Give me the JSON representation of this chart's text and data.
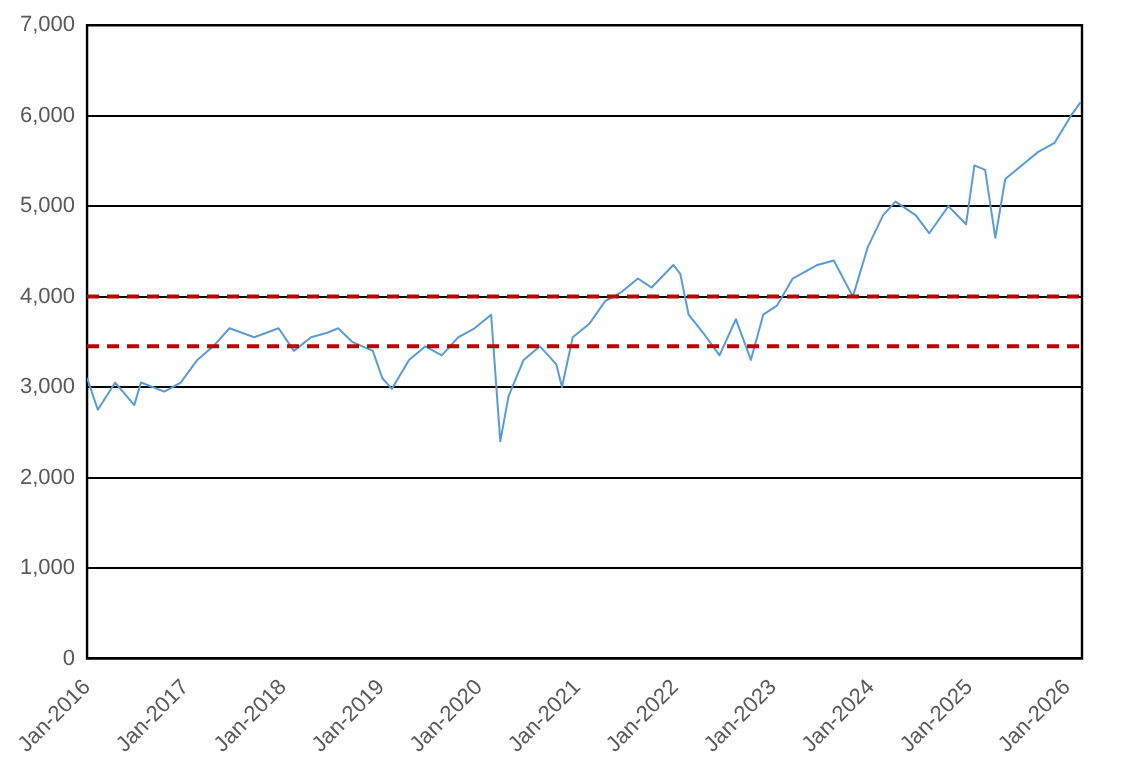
{
  "chart_data": {
    "type": "line",
    "x": [
      "2016-01-01",
      "2016-02-10",
      "2016-04-15",
      "2016-06-25",
      "2016-07-20",
      "2016-10-15",
      "2016-12-15",
      "2017-02-15",
      "2017-04-15",
      "2017-06-15",
      "2017-09-15",
      "2017-12-15",
      "2018-02-10",
      "2018-04-15",
      "2018-06-15",
      "2018-07-25",
      "2018-09-15",
      "2018-12-01",
      "2019-01-05",
      "2019-02-10",
      "2019-04-15",
      "2019-06-15",
      "2019-08-15",
      "2019-10-15",
      "2019-12-15",
      "2020-02-15",
      "2020-03-20",
      "2020-04-20",
      "2020-06-15",
      "2020-08-15",
      "2020-10-15",
      "2020-11-05",
      "2020-12-15",
      "2021-02-15",
      "2021-04-15",
      "2021-06-15",
      "2021-08-15",
      "2021-10-05",
      "2021-12-25",
      "2022-01-20",
      "2022-02-20",
      "2022-04-15",
      "2022-06-15",
      "2022-08-15",
      "2022-10-10",
      "2022-11-25",
      "2023-01-15",
      "2023-03-15",
      "2023-06-15",
      "2023-08-15",
      "2023-10-25",
      "2023-12-20",
      "2024-02-15",
      "2024-04-01",
      "2024-06-15",
      "2024-08-05",
      "2024-10-15",
      "2024-12-20",
      "2025-01-20",
      "2025-03-01",
      "2025-04-08",
      "2025-05-15",
      "2025-07-15",
      "2025-09-15",
      "2025-11-15",
      "2026-01-15",
      "2026-02-20"
    ],
    "series": [
      {
        "color": "#5b9bd5",
        "values": [
          3100,
          2750,
          3050,
          2800,
          3050,
          2950,
          3050,
          3300,
          3450,
          3650,
          3550,
          3650,
          3400,
          3550,
          3600,
          3650,
          3500,
          3400,
          3100,
          2980,
          3300,
          3450,
          3350,
          3550,
          3650,
          3800,
          2400,
          2900,
          3300,
          3450,
          3250,
          3000,
          3550,
          3700,
          3950,
          4050,
          4200,
          4100,
          4350,
          4250,
          3800,
          3600,
          3350,
          3750,
          3300,
          3800,
          3900,
          4200,
          4350,
          4400,
          4000,
          4550,
          4900,
          5050,
          4900,
          4700,
          5000,
          4800,
          5450,
          5400,
          4650,
          5300,
          5450,
          5600,
          5700,
          6000,
          6150
        ]
      }
    ],
    "xlim": [
      "2016-01-01",
      "2026-02-25"
    ],
    "xticks": [
      {
        "value": "2016-01-01",
        "label": "Jan-2016"
      },
      {
        "value": "2017-01-01",
        "label": "Jan-2017"
      },
      {
        "value": "2018-01-01",
        "label": "Jan-2018"
      },
      {
        "value": "2019-01-01",
        "label": "Jan-2019"
      },
      {
        "value": "2020-01-01",
        "label": "Jan-2020"
      },
      {
        "value": "2021-01-01",
        "label": "Jan-2021"
      },
      {
        "value": "2022-01-01",
        "label": "Jan-2022"
      },
      {
        "value": "2023-01-01",
        "label": "Jan-2023"
      },
      {
        "value": "2024-01-01",
        "label": "Jan-2024"
      },
      {
        "value": "2025-01-01",
        "label": "Jan-2025"
      },
      {
        "value": "2026-01-01",
        "label": "Jan-2026"
      }
    ],
    "ylim": [
      0,
      7000
    ],
    "yticks": [
      0,
      {
        "value": 1000,
        "label": "1,000"
      },
      {
        "value": 2000,
        "label": "2,000"
      },
      {
        "value": 3000,
        "label": "3,000"
      },
      {
        "value": 4000,
        "label": "4,000"
      },
      {
        "value": 5000,
        "label": "5,000"
      },
      {
        "value": 6000,
        "label": "6,000"
      },
      {
        "value": 7000,
        "label": "7,000"
      }
    ],
    "ref_lines": [
      {
        "axis": "y",
        "value": 4000,
        "color": "#c00000",
        "line_style": "dashed"
      },
      {
        "axis": "y",
        "value": 3450,
        "color": "#c00000",
        "line_style": "dashed"
      }
    ],
    "grid": "y",
    "legend": false,
    "marker": "none",
    "line_style": "solid"
  }
}
